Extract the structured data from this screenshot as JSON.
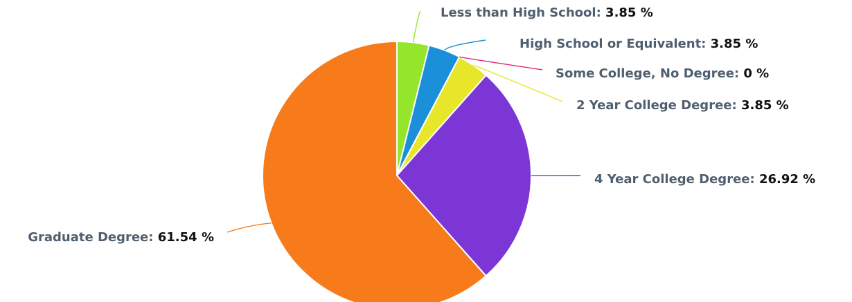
{
  "chart_data": {
    "type": "pie",
    "title": "",
    "unit": "%",
    "slices": [
      {
        "label": "Less than High School",
        "value": 3.85,
        "value_text": "3.85 %",
        "color": "#94e62b"
      },
      {
        "label": "High School or Equivalent",
        "value": 3.85,
        "value_text": "3.85 %",
        "color": "#1b8fd9"
      },
      {
        "label": "Some College, No Degree",
        "value": 0,
        "value_text": "0 %",
        "color": "#e8257d"
      },
      {
        "label": "2 Year College Degree",
        "value": 3.85,
        "value_text": "3.85 %",
        "color": "#e8e62a"
      },
      {
        "label": "4 Year College Degree",
        "value": 26.92,
        "value_text": "26.92 %",
        "color": "#7d36d6"
      },
      {
        "label": "Graduate Degree",
        "value": 61.54,
        "value_text": "61.54 %",
        "color": "#f77b1a"
      }
    ]
  }
}
